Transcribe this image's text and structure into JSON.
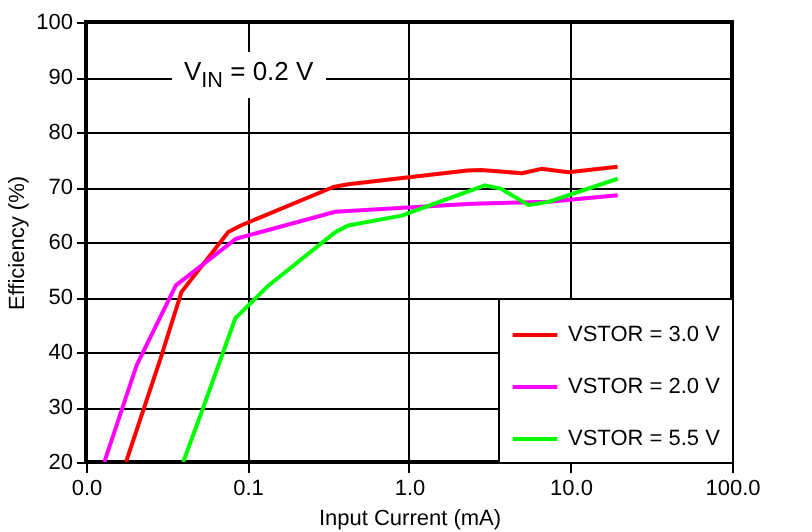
{
  "chart_data": {
    "type": "line",
    "xlabel": "Input Current (mA)",
    "ylabel": "Efficiency (%)",
    "log": "x",
    "xlim": [
      0.01,
      100
    ],
    "ylim": [
      20,
      100
    ],
    "xticks": [
      {
        "value": 0.01,
        "label": "0.0"
      },
      {
        "value": 0.1,
        "label": "0.1"
      },
      {
        "value": 1,
        "label": "1.0"
      },
      {
        "value": 10,
        "label": "10.0"
      },
      {
        "value": 100,
        "label": "100.0"
      }
    ],
    "yticks": [
      20,
      30,
      40,
      50,
      60,
      70,
      80,
      90,
      100
    ],
    "grid": true,
    "legend": "bottom right",
    "annotations": [
      "V$_{IN}$ = 0.2 V"
    ],
    "series": [
      {
        "name": "VSTOR = 3.0 V",
        "color": "#ff0000",
        "x": [
          0.0177,
          0.029,
          0.039,
          0.076,
          0.091,
          0.34,
          0.42,
          2.3,
          2.8,
          5,
          6.6,
          9.7,
          19.6
        ],
        "values": [
          20,
          38.9,
          50.9,
          61.8,
          63,
          70,
          70.5,
          73,
          73.1,
          72.5,
          73.3,
          72.7,
          73.7
        ]
      },
      {
        "name": "VSTOR = 2.0 V",
        "color": "#ff00ff",
        "x": [
          0.013,
          0.0206,
          0.036,
          0.085,
          0.35,
          2.3,
          2.8,
          7.3,
          19.6
        ],
        "values": [
          20,
          37.6,
          52.1,
          60.6,
          65.5,
          66.9,
          67,
          67.3,
          68.5
        ]
      },
      {
        "name": "VSTOR = 5.5 V",
        "color": "#00ff00",
        "x": [
          0.04,
          0.052,
          0.084,
          0.135,
          0.35,
          0.42,
          0.9,
          1.75,
          2.95,
          3.7,
          5.5,
          7.3,
          19.6
        ],
        "values": [
          20,
          29.1,
          46.1,
          52.1,
          61.8,
          63,
          64.8,
          67.9,
          70.3,
          69.7,
          66.7,
          67.3,
          71.5
        ]
      }
    ]
  }
}
